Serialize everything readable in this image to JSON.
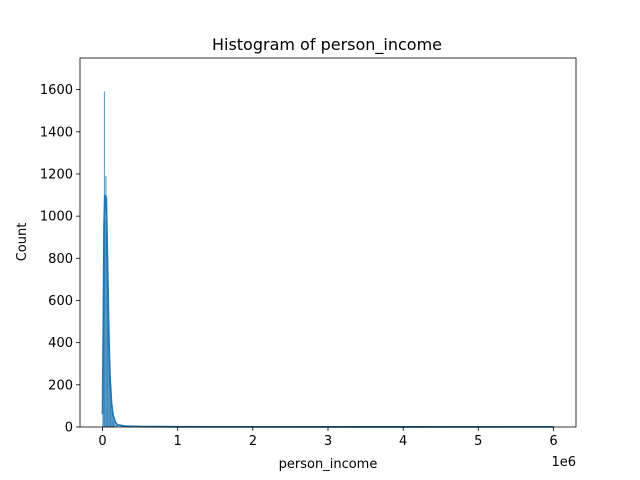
{
  "chart_data": {
    "type": "histogram",
    "title": "Histogram of person_income",
    "xlabel": "person_income",
    "ylabel": "Count",
    "x_offset_label": "1e6",
    "xlim": [
      -300000,
      6300000
    ],
    "ylim": [
      0,
      1750
    ],
    "x_ticks": [
      0,
      1,
      2,
      3,
      4,
      5,
      6
    ],
    "x_tick_scale": 1000000,
    "y_ticks": [
      0,
      200,
      400,
      600,
      800,
      1000,
      1200,
      1400,
      1600
    ],
    "bin_width": 10000,
    "bars": [
      {
        "x": 0,
        "count": 60
      },
      {
        "x": 10000,
        "count": 420
      },
      {
        "x": 20000,
        "count": 1590
      },
      {
        "x": 30000,
        "count": 980
      },
      {
        "x": 40000,
        "count": 1190
      },
      {
        "x": 50000,
        "count": 1090
      },
      {
        "x": 60000,
        "count": 760
      },
      {
        "x": 70000,
        "count": 520
      },
      {
        "x": 80000,
        "count": 330
      },
      {
        "x": 90000,
        "count": 250
      },
      {
        "x": 100000,
        "count": 180
      },
      {
        "x": 110000,
        "count": 110
      },
      {
        "x": 120000,
        "count": 70
      },
      {
        "x": 130000,
        "count": 45
      },
      {
        "x": 140000,
        "count": 30
      },
      {
        "x": 150000,
        "count": 20
      },
      {
        "x": 160000,
        "count": 14
      },
      {
        "x": 180000,
        "count": 8
      },
      {
        "x": 200000,
        "count": 5
      },
      {
        "x": 250000,
        "count": 3
      },
      {
        "x": 300000,
        "count": 2
      }
    ],
    "kde": [
      [
        0,
        60
      ],
      [
        10000,
        450
      ],
      [
        20000,
        950
      ],
      [
        30000,
        1090
      ],
      [
        40000,
        1100
      ],
      [
        50000,
        1060
      ],
      [
        60000,
        900
      ],
      [
        70000,
        700
      ],
      [
        80000,
        500
      ],
      [
        90000,
        340
      ],
      [
        100000,
        230
      ],
      [
        120000,
        110
      ],
      [
        140000,
        55
      ],
      [
        170000,
        22
      ],
      [
        200000,
        10
      ],
      [
        300000,
        4
      ],
      [
        500000,
        2
      ],
      [
        1000000,
        1
      ],
      [
        2000000,
        0.5
      ],
      [
        4000000,
        0.3
      ],
      [
        6000000,
        0.5
      ]
    ],
    "colors": {
      "bar_fill": "#1f77b4",
      "kde_line": "#1f77b4"
    }
  }
}
